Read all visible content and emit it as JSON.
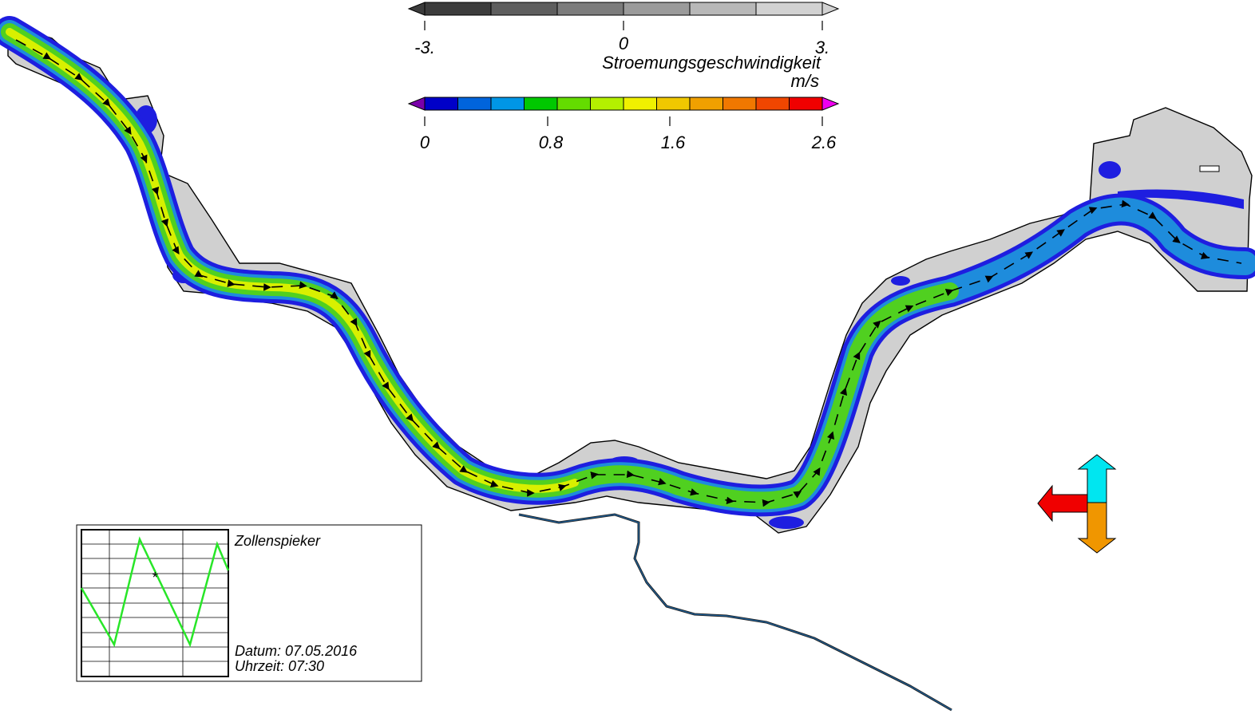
{
  "legend_vertical": {
    "ticks": [
      "-3.",
      "0",
      "3."
    ],
    "title": "Stroemungsgeschwindigkeit",
    "colors": [
      "#3c3c3c",
      "#5e5e5e",
      "#7c7c7c",
      "#9b9b9b",
      "#b8b8b8",
      "#d2d2d2"
    ]
  },
  "legend_speed": {
    "unit": "m/s",
    "ticks": [
      "0",
      "0.8",
      "1.6",
      "2.6"
    ],
    "colors": [
      "#0000c8",
      "#0064dc",
      "#0096e6",
      "#00c800",
      "#64dc00",
      "#b4f000",
      "#f0f000",
      "#f0c800",
      "#f0a000",
      "#f07800",
      "#f04600",
      "#f00000"
    ],
    "under_color": "#7a00aa",
    "over_color": "#f000f0"
  },
  "station": {
    "name": "Zollenspieker",
    "date_label": "Datum: 07.05.2016",
    "time_label": "Uhrzeit: 07:30",
    "current_marker": "*"
  },
  "direction_indicator": {
    "icons": [
      "arrow-up-icon",
      "arrow-down-icon",
      "arrow-left-icon"
    ],
    "colors": {
      "up": "#00e6f0",
      "down": "#f09600",
      "left": "#f00000"
    }
  },
  "map_colors": {
    "land_shade": "#d0d0d0",
    "shallow_water": "#1e1ee0",
    "mid_water": "#1e8cdc",
    "main_flow": "#50d020",
    "fast_flow": "#d8f000",
    "channel_line": "#1e64a0"
  }
}
